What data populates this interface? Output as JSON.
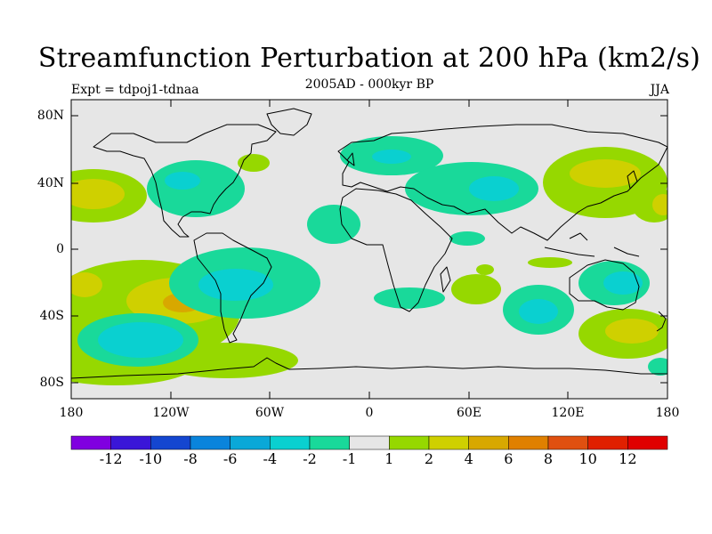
{
  "header": {
    "title": "Streamfunction Perturbation at 200 hPa (km2/s)",
    "expt": "Expt = tdpoj1-tdnaa",
    "period": "2005AD - 000kyr BP",
    "season": "JJA"
  },
  "axes": {
    "y_ticks": [
      "80N",
      "40N",
      "0",
      "40S",
      "80S"
    ],
    "x_ticks": [
      "180",
      "120W",
      "60W",
      "0",
      "60E",
      "120E",
      "180"
    ]
  },
  "colorbar": {
    "labels": [
      "-12",
      "-10",
      "-8",
      "-6",
      "-4",
      "-2",
      "-1",
      "1",
      "2",
      "4",
      "6",
      "8",
      "10",
      "12"
    ],
    "colors": [
      "#8000e0",
      "#3a16d8",
      "#1446d0",
      "#0a84dc",
      "#0aa8d8",
      "#0ad0d0",
      "#19d99a",
      "#e6e6e6",
      "#96d800",
      "#cfd000",
      "#d8a800",
      "#e08000",
      "#e05010",
      "#e02000",
      "#e00000"
    ]
  },
  "map": {
    "background_color": "#e6e6e6",
    "land_outline_color": "#000000"
  }
}
